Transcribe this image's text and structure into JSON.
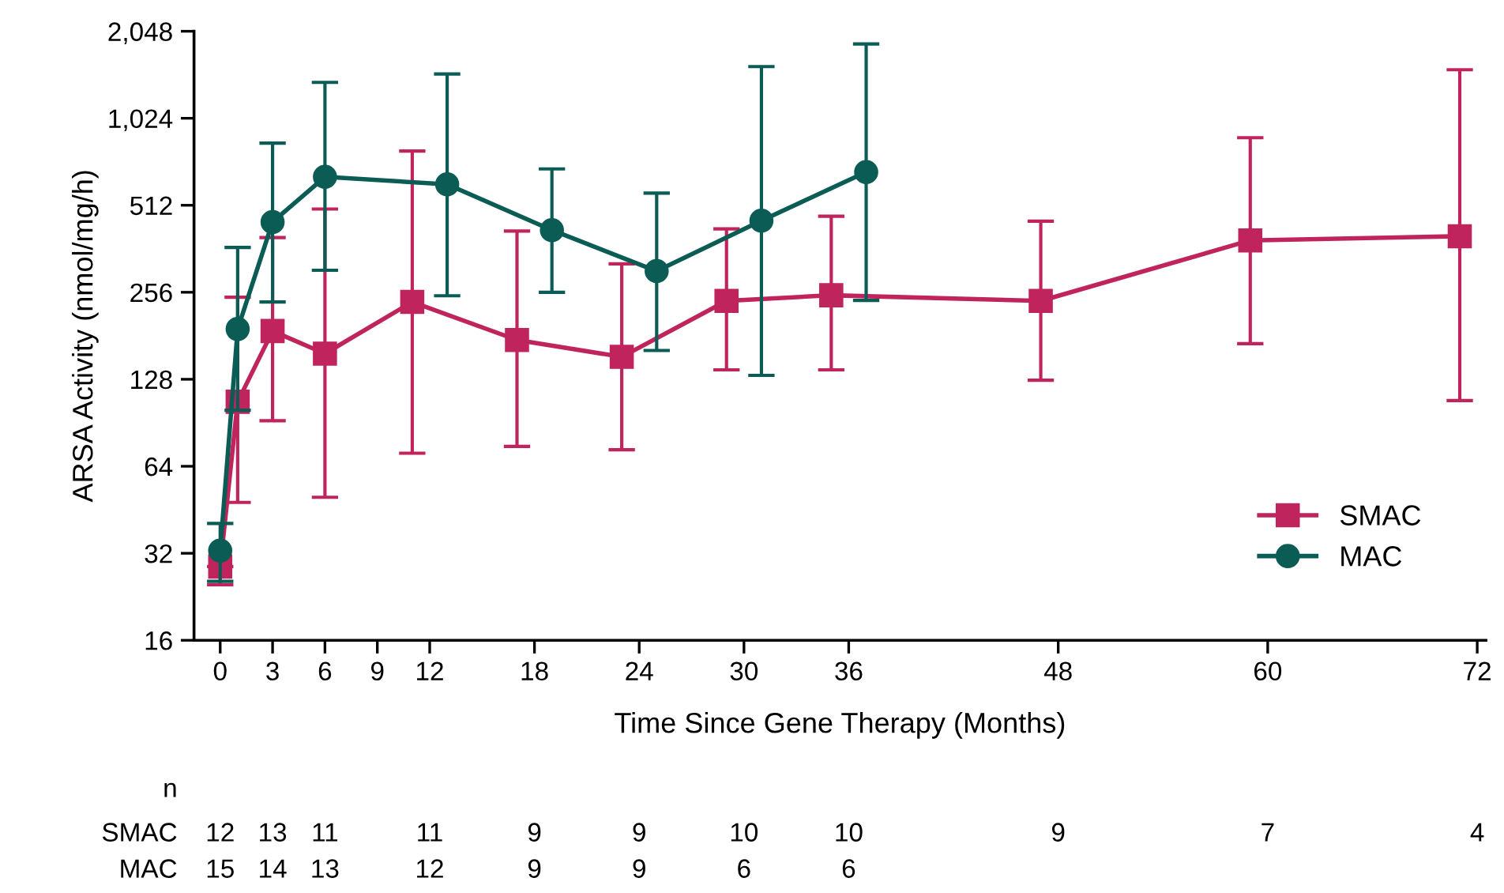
{
  "chart_data": {
    "type": "line",
    "xlabel": "Time Since Gene Therapy (Months)",
    "ylabel": "ARSA Activity (nmol/mg/h)",
    "log": "y",
    "xlim": [
      -1.5,
      72.5
    ],
    "xticks": [
      0,
      3,
      6,
      9,
      12,
      18,
      24,
      30,
      36,
      48,
      60,
      72
    ],
    "ylim": [
      16,
      2048
    ],
    "yticks": [
      16,
      32,
      64,
      128,
      {
        "value": 256,
        "label": "256"
      },
      {
        "value": 512,
        "label": "512"
      },
      {
        "value": 1024,
        "label": "1,024"
      },
      {
        "value": 2048,
        "label": "2,048"
      }
    ],
    "grid": false,
    "legend": "lower right",
    "line_style": "solid",
    "series": [
      {
        "name": "SMAC",
        "color": "#c0245c",
        "marker": "square",
        "x": [
          0,
          1,
          3,
          6,
          11,
          17,
          23,
          29,
          35,
          47,
          59,
          71
        ],
        "values": [
          28.8,
          107,
          188,
          157,
          237,
          175,
          153,
          239,
          250,
          239,
          387,
          400
        ],
        "errors": [
          [
            24.9,
            28.8
          ],
          [
            48,
            246
          ],
          [
            92,
            396
          ],
          [
            50,
            497
          ],
          [
            71,
            789
          ],
          [
            75,
            417
          ],
          [
            73,
            321
          ],
          [
            138,
            424
          ],
          [
            138,
            469
          ],
          [
            127,
            451
          ],
          [
            170,
            877
          ],
          [
            108,
            1507
          ]
        ]
      },
      {
        "name": "MAC",
        "color": "#0b5c55",
        "marker": "circle",
        "x": [
          0,
          1,
          3,
          6,
          13,
          19,
          25,
          31,
          37
        ],
        "values": [
          32.7,
          191,
          448,
          642,
          605,
          420,
          303,
          453,
          667
        ],
        "errors": [
          [
            25.6,
            40.6
          ],
          [
            100,
            366
          ],
          [
            237,
            840
          ],
          [
            305,
            1363
          ],
          [
            249,
            1457
          ],
          [
            256,
            684
          ],
          [
            161,
            564
          ],
          [
            132,
            1546
          ],
          [
            240,
            1851
          ]
        ]
      }
    ],
    "annotations": [
      "n",
      "SMAC",
      "12",
      "13",
      "11",
      "11",
      "9",
      "9",
      "10",
      "10",
      "9",
      "7",
      "4",
      "MAC",
      "15",
      "14",
      "13",
      "12",
      "9",
      "9",
      "6",
      "6"
    ]
  }
}
